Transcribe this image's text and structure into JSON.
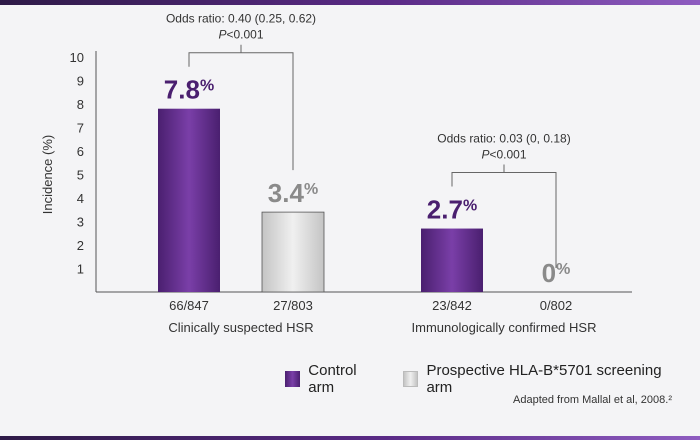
{
  "chart_data": {
    "type": "bar",
    "ylabel": "Incidence (%)",
    "ylim": [
      0,
      10
    ],
    "yticks": [
      1,
      2,
      3,
      4,
      5,
      6,
      7,
      8,
      9,
      10
    ],
    "groups": [
      {
        "name": "Clinically suspected HSR",
        "bars": [
          {
            "series": "Control arm",
            "value": 7.8,
            "value_label": "7.8",
            "count_label": "66/847"
          },
          {
            "series": "Prospective HLA-B*5701 screening arm",
            "value": 3.4,
            "value_label": "3.4",
            "count_label": "27/803"
          }
        ],
        "annotation": {
          "odds_ratio": "Odds ratio: 0.40 (0.25, 0.62)",
          "p_prefix": "P",
          "p_value": "<0.001"
        }
      },
      {
        "name": "Immunologically confirmed HSR",
        "bars": [
          {
            "series": "Control arm",
            "value": 2.7,
            "value_label": "2.7",
            "count_label": "23/842"
          },
          {
            "series": "Prospective HLA-B*5701 screening arm",
            "value": 0,
            "value_label": "0",
            "count_label": "0/802"
          }
        ],
        "annotation": {
          "odds_ratio": "Odds ratio: 0.03 (0, 0.18)",
          "p_prefix": "P",
          "p_value": "<0.001"
        }
      }
    ],
    "percent_symbol": "%",
    "legend": [
      {
        "label": "Control arm",
        "color": "#5b2a86"
      },
      {
        "label": "Prospective HLA-B*5701 screening arm",
        "color": "#d6d6d6"
      }
    ],
    "colors": {
      "control": "#5b2a86",
      "screening": "#d6d6d6",
      "value_control": "#4a1f6f",
      "value_screening": "#8a8a8a"
    }
  },
  "source": "Adapted from Mallal et al, 2008.²"
}
